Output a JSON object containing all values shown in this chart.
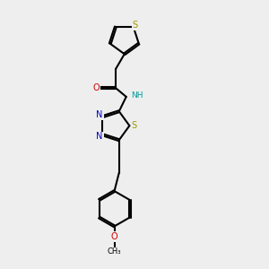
{
  "bg_color": "#eeeeee",
  "line_color": "#000000",
  "S_color": "#999900",
  "N_color": "#0000cc",
  "O_color": "#cc0000",
  "NH_color": "#009999",
  "line_width": 1.5,
  "doff": 0.035,
  "xlim": [
    2.0,
    8.5
  ],
  "ylim": [
    0.0,
    10.5
  ],
  "figsize": [
    3.0,
    3.0
  ],
  "dpi": 100
}
